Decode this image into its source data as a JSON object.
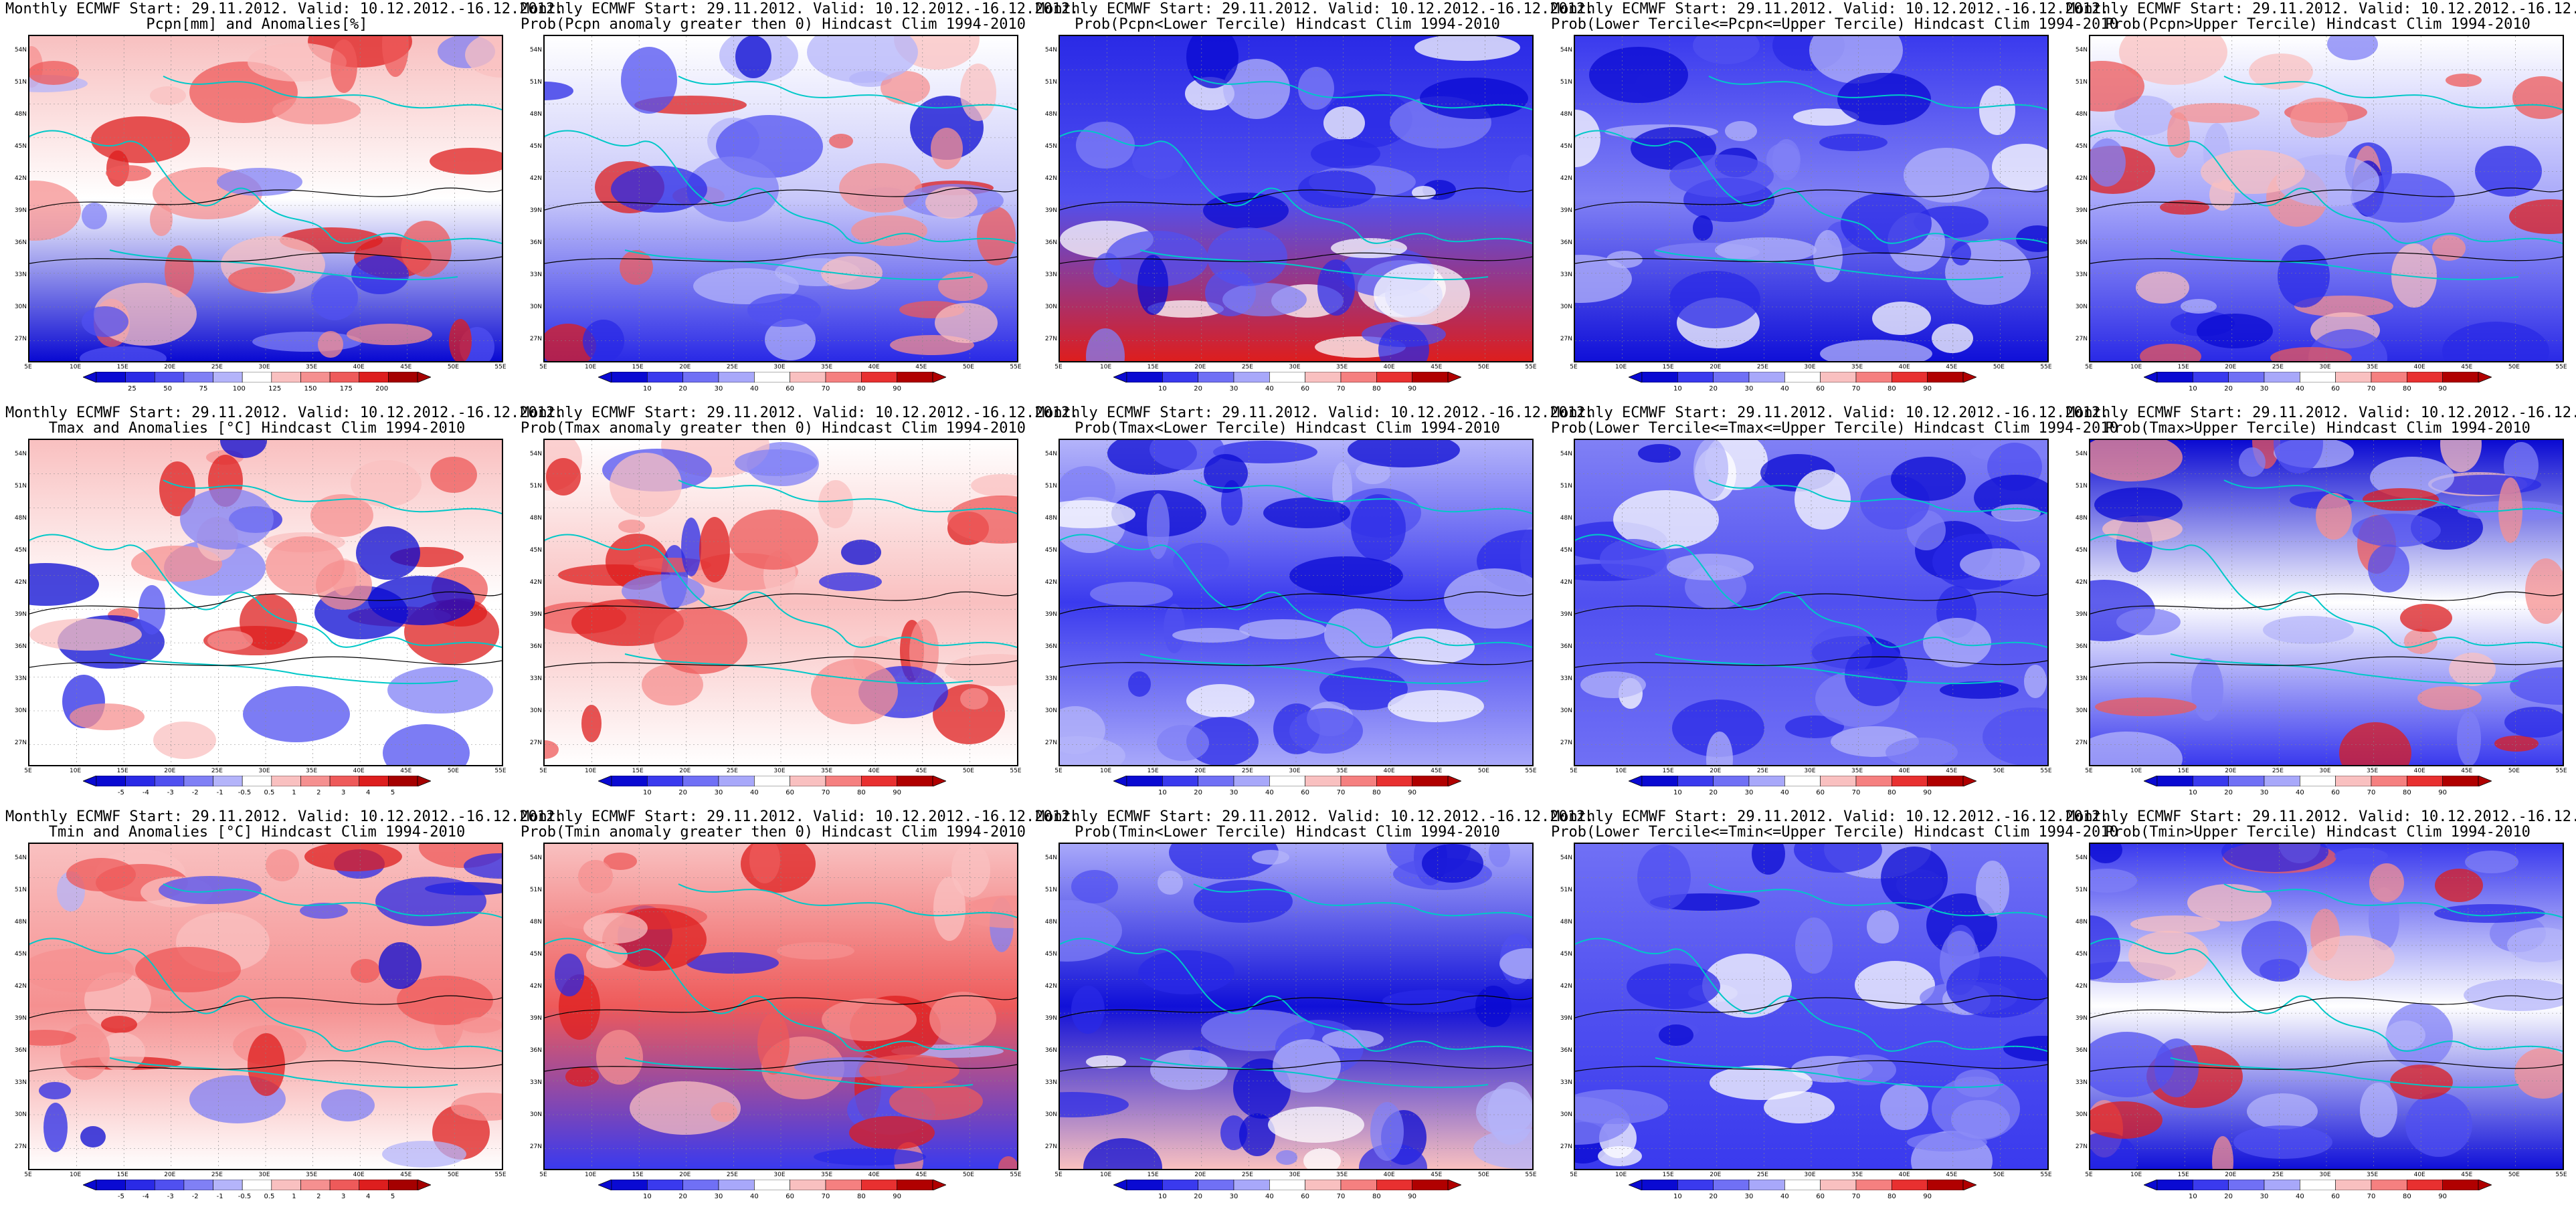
{
  "common": {
    "lat_labels": [
      "54N",
      "51N",
      "48N",
      "45N",
      "42N",
      "39N",
      "36N",
      "33N",
      "30N",
      "27N"
    ],
    "lon_labels": [
      "5E",
      "10E",
      "15E",
      "20E",
      "25E",
      "30E",
      "35E",
      "40E",
      "45E",
      "50E",
      "55E"
    ],
    "palette_blue_red": [
      "#0a0ad2",
      "#2a2ae6",
      "#5050f0",
      "#8080f5",
      "#b4b4fa",
      "#ffffff",
      "#f9c0c0",
      "#f59090",
      "#ee5a5a",
      "#dd1e1e",
      "#a50000"
    ],
    "palette_prob": [
      "#0a0ad2",
      "#3a3aee",
      "#7070f5",
      "#a8a8fa",
      "#ffffff",
      "#f9c0c0",
      "#f58080",
      "#e83030",
      "#b00000"
    ],
    "coast_color": "#00c8c8"
  },
  "panels": [
    {
      "title": "Monthly ECMWF Start: 29.11.2012. Valid: 10.12.2012.-16.12.2012.",
      "subtitle": "Pcpn[mm] and Anomalies[%]",
      "cbar_ticks": [
        "25",
        "50",
        "75",
        "100",
        "125",
        "150",
        "175",
        "200"
      ],
      "scheme": "anom"
    },
    {
      "title": "Monthly ECMWF Start: 29.11.2012. Valid: 10.12.2012.-16.12.2012.",
      "subtitle": "Prob(Pcpn anomaly greater then 0) Hindcast Clim 1994-2010",
      "cbar_ticks": [
        "10",
        "20",
        "30",
        "40",
        "60",
        "70",
        "80",
        "90"
      ],
      "scheme": "prob"
    },
    {
      "title": "Monthly ECMWF Start: 29.11.2012. Valid: 10.12.2012.-16.12.2012.",
      "subtitle": "Prob(Pcpn<Lower Tercile) Hindcast Clim 1994-2010",
      "cbar_ticks": [
        "10",
        "20",
        "30",
        "40",
        "60",
        "70",
        "80",
        "90"
      ],
      "scheme": "prob"
    },
    {
      "title": "Monthly ECMWF Start: 29.11.2012. Valid: 10.12.2012.-16.12.2012.",
      "subtitle": "Prob(Lower Tercile<=Pcpn<=Upper Tercile) Hindcast Clim 1994-2010",
      "cbar_ticks": [
        "10",
        "20",
        "30",
        "40",
        "60",
        "70",
        "80",
        "90"
      ],
      "scheme": "prob"
    },
    {
      "title": "Monthly ECMWF Start: 29.11.2012. Valid: 10.12.2012.-16.12.2012.",
      "subtitle": "Prob(Pcpn>Upper Tercile) Hindcast Clim 1994-2010",
      "cbar_ticks": [
        "10",
        "20",
        "30",
        "40",
        "60",
        "70",
        "80",
        "90"
      ],
      "scheme": "prob"
    },
    {
      "title": "Monthly ECMWF Start: 29.11.2012. Valid: 10.12.2012.-16.12.2012.",
      "subtitle": "Tmax and Anomalies [°C] Hindcast Clim 1994-2010",
      "cbar_ticks": [
        "-5",
        "-4",
        "-3",
        "-2",
        "-1",
        "-0.5",
        "0.5",
        "1",
        "2",
        "3",
        "4",
        "5"
      ],
      "scheme": "anom"
    },
    {
      "title": "Monthly ECMWF Start: 29.11.2012. Valid: 10.12.2012.-16.12.2012.",
      "subtitle": "Prob(Tmax anomaly greater then 0) Hindcast Clim 1994-2010",
      "cbar_ticks": [
        "10",
        "20",
        "30",
        "40",
        "60",
        "70",
        "80",
        "90"
      ],
      "scheme": "prob"
    },
    {
      "title": "Monthly ECMWF Start: 29.11.2012. Valid: 10.12.2012.-16.12.2012.",
      "subtitle": "Prob(Tmax<Lower Tercile) Hindcast Clim 1994-2010",
      "cbar_ticks": [
        "10",
        "20",
        "30",
        "40",
        "60",
        "70",
        "80",
        "90"
      ],
      "scheme": "prob"
    },
    {
      "title": "Monthly ECMWF Start: 29.11.2012. Valid: 10.12.2012.-16.12.2012.",
      "subtitle": "Prob(Lower Tercile<=Tmax<=Upper Tercile) Hindcast Clim 1994-2010",
      "cbar_ticks": [
        "10",
        "20",
        "30",
        "40",
        "60",
        "70",
        "80",
        "90"
      ],
      "scheme": "prob"
    },
    {
      "title": "Monthly ECMWF Start: 29.11.2012. Valid: 10.12.2012.-16.12.2012.",
      "subtitle": "Prob(Tmax>Upper Tercile) Hindcast Clim 1994-2010",
      "cbar_ticks": [
        "10",
        "20",
        "30",
        "40",
        "60",
        "70",
        "80",
        "90"
      ],
      "scheme": "prob"
    },
    {
      "title": "Monthly ECMWF Start: 29.11.2012. Valid: 10.12.2012.-16.12.2012.",
      "subtitle": "Tmin and Anomalies [°C] Hindcast Clim 1994-2010",
      "cbar_ticks": [
        "-5",
        "-4",
        "-3",
        "-2",
        "-1",
        "-0.5",
        "0.5",
        "1",
        "2",
        "3",
        "4",
        "5"
      ],
      "scheme": "anom"
    },
    {
      "title": "Monthly ECMWF Start: 29.11.2012. Valid: 10.12.2012.-16.12.2012.",
      "subtitle": "Prob(Tmin anomaly greater then 0) Hindcast Clim 1994-2010",
      "cbar_ticks": [
        "10",
        "20",
        "30",
        "40",
        "60",
        "70",
        "80",
        "90"
      ],
      "scheme": "prob"
    },
    {
      "title": "Monthly ECMWF Start: 29.11.2012. Valid: 10.12.2012.-16.12.2012.",
      "subtitle": "Prob(Tmin<Lower Tercile) Hindcast Clim 1994-2010",
      "cbar_ticks": [
        "10",
        "20",
        "30",
        "40",
        "60",
        "70",
        "80",
        "90"
      ],
      "scheme": "prob"
    },
    {
      "title": "Monthly ECMWF Start: 29.11.2012. Valid: 10.12.2012.-16.12.2012.",
      "subtitle": "Prob(Lower Tercile<=Tmin<=Upper Tercile) Hindcast Clim 1994-2010",
      "cbar_ticks": [
        "10",
        "20",
        "30",
        "40",
        "60",
        "70",
        "80",
        "90"
      ],
      "scheme": "prob"
    },
    {
      "title": "Monthly ECMWF Start: 29.11.2012. Valid: 10.12.2012.-16.12.2012.",
      "subtitle": "Prob(Tmin>Upper Tercile) Hindcast Clim 1994-2010",
      "cbar_ticks": [
        "10",
        "20",
        "30",
        "40",
        "60",
        "70",
        "80",
        "90"
      ],
      "scheme": "prob"
    }
  ]
}
